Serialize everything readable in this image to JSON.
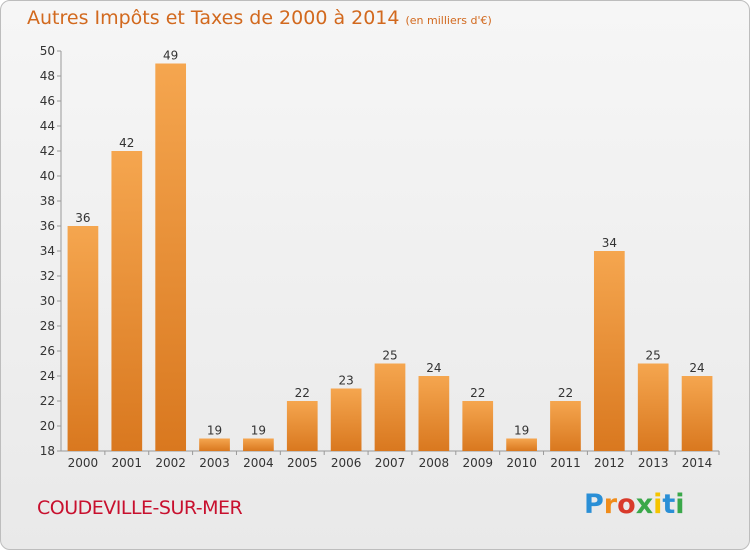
{
  "chart_data": {
    "type": "bar",
    "title": "Autres Impôts et Taxes de 2000 à 2014",
    "subtitle": "(en milliers d'€)",
    "categories": [
      "2000",
      "2001",
      "2002",
      "2003",
      "2004",
      "2005",
      "2006",
      "2007",
      "2008",
      "2009",
      "2010",
      "2011",
      "2012",
      "2013",
      "2014"
    ],
    "values": [
      36,
      42,
      49,
      19,
      19,
      22,
      23,
      25,
      24,
      22,
      19,
      22,
      34,
      25,
      24
    ],
    "ylim": [
      18,
      50
    ],
    "yticks": [
      18,
      20,
      22,
      24,
      26,
      28,
      30,
      32,
      34,
      36,
      38,
      40,
      42,
      44,
      46,
      48,
      50
    ],
    "grid": false,
    "bar_color_top": "#f5a64f",
    "bar_color_bottom": "#d9781f"
  },
  "footer": {
    "city": "COUDEVILLE-SUR-MER",
    "logo_text": "Proxiti",
    "logo_colors": [
      "#2a8fd6",
      "#f08c1a",
      "#d93a2b",
      "#3aa84a",
      "#f5c400",
      "#2a8fd6",
      "#3aa84a"
    ]
  }
}
